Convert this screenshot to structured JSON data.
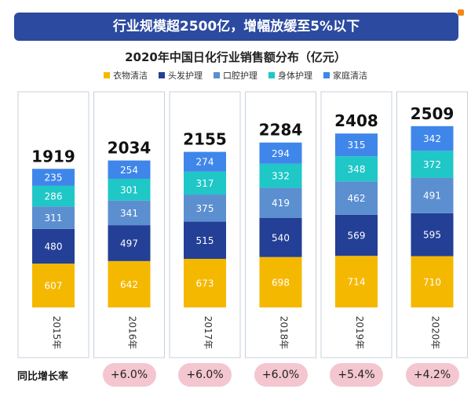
{
  "banner": "行业规模超2500亿，增幅放缓至5%以下",
  "growth_label": "同比增长率",
  "growth": [
    "",
    "+6.0%",
    "+6.0%",
    "+6.0%",
    "+5.4%",
    "+4.2%"
  ],
  "chart_data": {
    "type": "bar",
    "stacked": true,
    "title": "2020年中国日化行业销售额分布（亿元）",
    "categories": [
      "2015年",
      "2016年",
      "2017年",
      "2018年",
      "2019年",
      "2020年"
    ],
    "totals": [
      1919,
      2034,
      2155,
      2284,
      2408,
      2509
    ],
    "series": [
      {
        "name": "衣物清洁",
        "color": "#f5b800",
        "values": [
          607,
          642,
          673,
          698,
          714,
          710
        ]
      },
      {
        "name": "头发护理",
        "color": "#233f96",
        "values": [
          480,
          497,
          515,
          540,
          569,
          595
        ]
      },
      {
        "name": "口腔护理",
        "color": "#5b8fd0",
        "values": [
          311,
          341,
          375,
          419,
          462,
          491
        ]
      },
      {
        "name": "身体护理",
        "color": "#1fc7c7",
        "values": [
          286,
          301,
          317,
          332,
          348,
          372
        ]
      },
      {
        "name": "家庭清洁",
        "color": "#3f86ea",
        "values": [
          235,
          254,
          274,
          294,
          315,
          342
        ]
      }
    ],
    "legend_position": "top"
  }
}
